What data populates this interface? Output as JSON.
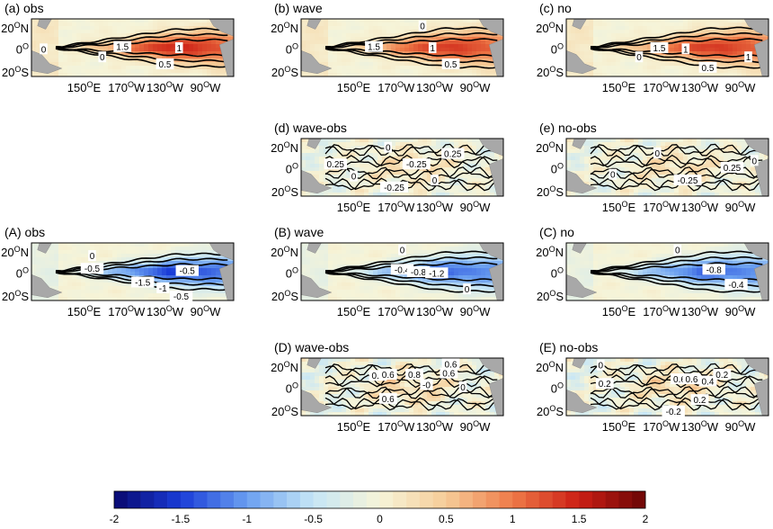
{
  "chart_data": {
    "type": "heatmap",
    "colorbar": {
      "ticks": [
        "-2",
        "-1.5",
        "-1",
        "-0.5",
        "0",
        "0.5",
        "1",
        "1.5",
        "2"
      ],
      "range": [
        -2,
        2
      ],
      "colors": [
        "#08086e",
        "#1a3cd8",
        "#6a9ff0",
        "#c6e6f6",
        "#f6f4d8",
        "#f6cc98",
        "#ee7a48",
        "#cc1e14",
        "#6a0606"
      ]
    },
    "x_ticks": [
      "150|O|E",
      "170|O|W",
      "130|O|W",
      "90|O|W"
    ],
    "y_ticks": [
      "20|O|N",
      "0|O|",
      "20|O|S"
    ],
    "panels": [
      {
        "id": "a",
        "title": "(a) obs",
        "sign": 1,
        "amp": 1.6,
        "noise": 0.15,
        "width": 0.95,
        "labels": [
          {
            "text": "1.5",
            "u": 0.45,
            "v": 0.48
          },
          {
            "text": "1",
            "u": 0.73,
            "v": 0.5
          },
          {
            "text": "0.5",
            "u": 0.66,
            "v": 0.78
          },
          {
            "text": "0",
            "u": 0.35,
            "v": 0.66
          },
          {
            "text": "0",
            "u": 0.06,
            "v": 0.52
          }
        ]
      },
      {
        "id": "b",
        "title": "(b) wave",
        "sign": 1,
        "amp": 1.5,
        "noise": 0.15,
        "width": 1.0,
        "labels": [
          {
            "text": "0",
            "u": 0.6,
            "v": 0.12
          },
          {
            "text": "1.5",
            "u": 0.36,
            "v": 0.48
          },
          {
            "text": "1",
            "u": 0.65,
            "v": 0.5
          },
          {
            "text": "0.5",
            "u": 0.74,
            "v": 0.78
          }
        ]
      },
      {
        "id": "c",
        "title": "(c) no",
        "sign": 1,
        "amp": 1.5,
        "noise": 0.15,
        "width": 1.0,
        "labels": [
          {
            "text": "1.5",
            "u": 0.46,
            "v": 0.5
          },
          {
            "text": "1",
            "u": 0.59,
            "v": 0.52
          },
          {
            "text": "0.5",
            "u": 0.7,
            "v": 0.84
          },
          {
            "text": "1",
            "u": 0.9,
            "v": 0.66
          },
          {
            "text": "0",
            "u": 0.36,
            "v": 0.66
          }
        ]
      },
      {
        "id": "d",
        "title": "(d) wave-obs",
        "sign": 0,
        "amp": 0.3,
        "noise": 0.5,
        "width": 1.0,
        "labels": [
          {
            "text": "0",
            "u": 0.43,
            "v": 0.15
          },
          {
            "text": "0.25",
            "u": 0.17,
            "v": 0.44
          },
          {
            "text": "-0.25",
            "u": 0.57,
            "v": 0.44
          },
          {
            "text": "0.25",
            "u": 0.75,
            "v": 0.26
          },
          {
            "text": "0",
            "u": 0.26,
            "v": 0.65
          },
          {
            "text": "-0.25",
            "u": 0.46,
            "v": 0.84
          },
          {
            "text": "0",
            "u": 0.66,
            "v": 0.72
          }
        ]
      },
      {
        "id": "e",
        "title": "(e) no-obs",
        "sign": 0,
        "amp": 0.3,
        "noise": 0.5,
        "width": 1.0,
        "labels": [
          {
            "text": "0",
            "u": 0.45,
            "v": 0.25
          },
          {
            "text": "-0.25",
            "u": 0.6,
            "v": 0.72
          },
          {
            "text": "0.25",
            "u": 0.82,
            "v": 0.5
          },
          {
            "text": "0",
            "u": 0.23,
            "v": 0.62
          },
          {
            "text": "0",
            "u": 0.93,
            "v": 0.38
          }
        ]
      },
      {
        "id": "A",
        "title": "(A) obs",
        "sign": -1,
        "amp": 1.6,
        "noise": 0.15,
        "width": 0.9,
        "labels": [
          {
            "text": "0",
            "u": 0.3,
            "v": 0.22
          },
          {
            "text": "-0.5",
            "u": 0.3,
            "v": 0.44
          },
          {
            "text": "-1.5",
            "u": 0.55,
            "v": 0.68
          },
          {
            "text": "-1",
            "u": 0.65,
            "v": 0.78
          },
          {
            "text": "-0.5",
            "u": 0.77,
            "v": 0.48
          },
          {
            "text": "-0.5",
            "u": 0.74,
            "v": 0.92
          }
        ]
      },
      {
        "id": "B",
        "title": "(B) wave",
        "sign": -1,
        "amp": 1.4,
        "noise": 0.15,
        "width": 1.0,
        "labels": [
          {
            "text": "0",
            "u": 0.5,
            "v": 0.12
          },
          {
            "text": "-0.4",
            "u": 0.5,
            "v": 0.46
          },
          {
            "text": "-0.8",
            "u": 0.58,
            "v": 0.5
          },
          {
            "text": "-1.2",
            "u": 0.67,
            "v": 0.52
          },
          {
            "text": "0",
            "u": 0.82,
            "v": 0.8
          }
        ]
      },
      {
        "id": "C",
        "title": "(C) no",
        "sign": -1,
        "amp": 1.4,
        "noise": 0.15,
        "width": 1.0,
        "labels": [
          {
            "text": "0",
            "u": 0.55,
            "v": 0.12
          },
          {
            "text": "-0.8",
            "u": 0.73,
            "v": 0.46
          },
          {
            "text": "-0.4",
            "u": 0.84,
            "v": 0.72
          }
        ]
      },
      {
        "id": "D",
        "title": "(D) wave-obs",
        "sign": 0,
        "amp": 0.4,
        "noise": 0.6,
        "width": 1.0,
        "labels": [
          {
            "text": "0.6",
            "u": 0.74,
            "v": 0.1
          },
          {
            "text": "0.4",
            "u": 0.38,
            "v": 0.3
          },
          {
            "text": "0.6",
            "u": 0.43,
            "v": 0.28
          },
          {
            "text": "0.8",
            "u": 0.56,
            "v": 0.28
          },
          {
            "text": "0.6",
            "u": 0.73,
            "v": 0.26
          },
          {
            "text": "0.6",
            "u": 0.43,
            "v": 0.7
          },
          {
            "text": "-0",
            "u": 0.62,
            "v": 0.46
          },
          {
            "text": "0",
            "u": 0.8,
            "v": 0.5
          }
        ]
      },
      {
        "id": "E",
        "title": "(E) no-obs",
        "sign": 0,
        "amp": 0.4,
        "noise": 0.6,
        "width": 1.0,
        "labels": [
          {
            "text": "0",
            "u": 0.17,
            "v": 0.12
          },
          {
            "text": "0.2",
            "u": 0.19,
            "v": 0.44
          },
          {
            "text": "0.6",
            "u": 0.56,
            "v": 0.36
          },
          {
            "text": "0.6",
            "u": 0.62,
            "v": 0.36
          },
          {
            "text": "0.4",
            "u": 0.7,
            "v": 0.4
          },
          {
            "text": "0.2",
            "u": 0.66,
            "v": 0.72
          },
          {
            "text": "-0.2",
            "u": 0.53,
            "v": 0.92
          },
          {
            "text": "0.2",
            "u": 0.77,
            "v": 0.28
          }
        ]
      }
    ]
  }
}
